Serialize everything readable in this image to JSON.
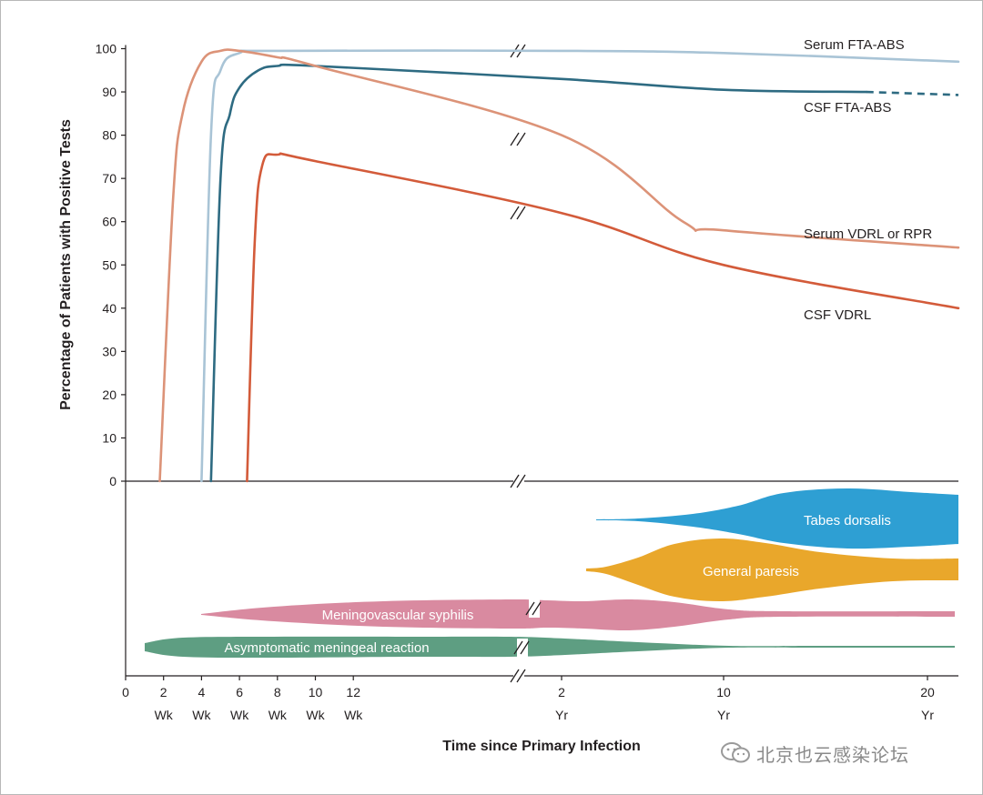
{
  "chart_data": [
    {
      "type": "line",
      "ylabel": "Percentage of Patients with Positive Tests",
      "xlabel": "Time since Primary Infection",
      "ylim": [
        0,
        100
      ],
      "y_ticks": [
        "0",
        "10",
        "20",
        "30",
        "40",
        "50",
        "60",
        "70",
        "80",
        "90",
        "100"
      ],
      "x_ticks": [
        {
          "value": "0",
          "unit": ""
        },
        {
          "value": "2",
          "unit": "Wk"
        },
        {
          "value": "4",
          "unit": "Wk"
        },
        {
          "value": "6",
          "unit": "Wk"
        },
        {
          "value": "8",
          "unit": "Wk"
        },
        {
          "value": "10",
          "unit": "Wk"
        },
        {
          "value": "12",
          "unit": "Wk"
        },
        {
          "value": "2",
          "unit": "Yr"
        },
        {
          "value": "10",
          "unit": "Yr"
        },
        {
          "value": "20",
          "unit": "Yr"
        }
      ],
      "axis_break": "between 12 Wk and 2 Yr",
      "grid": false,
      "series": [
        {
          "name": "Serum FTA-ABS",
          "color": "#a9c4d6",
          "points": [
            [
              "4 Wk",
              0
            ],
            [
              "4.5 Wk",
              80
            ],
            [
              "5 Wk",
              95
            ],
            [
              "6 Wk",
              99
            ],
            [
              "8 Wk",
              99.5
            ],
            [
              "2 Yr",
              99.5
            ],
            [
              "10 Yr",
              99
            ],
            [
              "21 Yr",
              97
            ]
          ]
        },
        {
          "name": "CSF FTA-ABS",
          "color": "#2e6b82",
          "dashed_tail_after": "17 Yr",
          "points": [
            [
              "4.5 Wk",
              0
            ],
            [
              "5 Wk",
              70
            ],
            [
              "5.5 Wk",
              85
            ],
            [
              "6 Wk",
              91
            ],
            [
              "7 Wk",
              95
            ],
            [
              "8 Wk",
              96
            ],
            [
              "10 Wk",
              96
            ],
            [
              "2 Yr",
              93
            ],
            [
              "10 Yr",
              90.5
            ],
            [
              "17 Yr",
              90
            ],
            [
              "21 Yr",
              89.3
            ]
          ]
        },
        {
          "name": "Serum VDRL or RPR",
          "color": "#dc9378",
          "points": [
            [
              "1.8 Wk",
              0
            ],
            [
              "2.5 Wk",
              65
            ],
            [
              "3 Wk",
              85
            ],
            [
              "4 Wk",
              97
            ],
            [
              "5 Wk",
              99.5
            ],
            [
              "6 Wk",
              99.5
            ],
            [
              "8 Wk",
              98
            ],
            [
              "10 Wk",
              96
            ],
            [
              "2 Yr",
              80
            ],
            [
              "8 Yr",
              60
            ],
            [
              "10 Yr",
              58
            ],
            [
              "21 Yr",
              54
            ]
          ]
        },
        {
          "name": "CSF VDRL",
          "color": "#d35b3a",
          "points": [
            [
              "6.4 Wk",
              0
            ],
            [
              "6.8 Wk",
              55
            ],
            [
              "7.2 Wk",
              73
            ],
            [
              "8 Wk",
              75.5
            ],
            [
              "10 Wk",
              74
            ],
            [
              "2 Yr",
              62
            ],
            [
              "10 Yr",
              50
            ],
            [
              "21 Yr",
              40
            ]
          ]
        }
      ]
    },
    {
      "type": "area",
      "description_of_encoding": "relative frequency band over time",
      "series": [
        {
          "name": "Tabes dorsalis",
          "color": "#2e9fd3"
        },
        {
          "name": "General paresis",
          "color": "#e9a72b"
        },
        {
          "name": "Meningovascular syphilis",
          "color": "#d98aa0"
        },
        {
          "name": "Asymptomatic meningeal reaction",
          "color": "#5e9e82"
        }
      ]
    }
  ],
  "watermark": "北京也云感染论坛"
}
